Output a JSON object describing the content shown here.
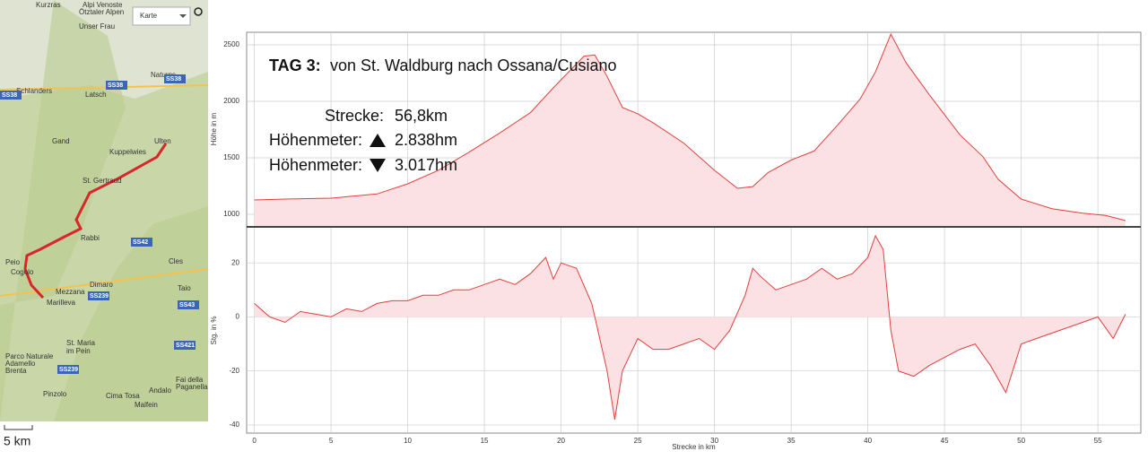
{
  "map": {
    "labels": [
      "Kurzras",
      "Alpi Venoste",
      "Ötztaler Alpen",
      "Unser Frau",
      "Naturns",
      "Schlanders",
      "Latsch",
      "Gand",
      "Ulten",
      "Kuppelwies",
      "St. Gertraud",
      "Rabbi",
      "Peio",
      "Cles",
      "Cogolo",
      "Dimaro",
      "Mezzana",
      "Taio",
      "Marilleva",
      "St. Maria",
      "im Pein",
      "Parco Naturale",
      "Adamello",
      "Brenta",
      "Fai della",
      "Paganella",
      "Pinzolo",
      "Cima Tosa",
      "Andalo",
      "Malfein"
    ],
    "roads": [
      "SS38",
      "SS38",
      "SS38",
      "SS42",
      "SS239",
      "SS43",
      "SS421",
      "SS239"
    ],
    "map_type": "Karte",
    "scale": "5 km"
  },
  "info": {
    "day": "TAG 3:",
    "route": "von St. Waldburg nach Ossana/Cusiano",
    "distance_label": "Strecke:",
    "distance": "56,8km",
    "ascent_label": "Höhenmeter:",
    "ascent": "2.838hm",
    "descent_label": "Höhenmeter:",
    "descent": "3.017hm"
  },
  "chart_data": [
    {
      "type": "area",
      "y_label": "Höhe in m",
      "color": "#e0403f",
      "fill": "#fbe1e3",
      "grid": true,
      "x": [
        0,
        2,
        5,
        8,
        10,
        12,
        14,
        16,
        18,
        19.5,
        20.5,
        21.5,
        22.2,
        23,
        24,
        25,
        26,
        28,
        30,
        31.5,
        32.5,
        33.5,
        35,
        36.5,
        38,
        39.5,
        40.5,
        41.5,
        42.5,
        44,
        46,
        47.5,
        48.5,
        50,
        52,
        54,
        55.5,
        56.8
      ],
      "values": [
        1127,
        1135,
        1143,
        1180,
        1270,
        1390,
        1550,
        1720,
        1900,
        2120,
        2260,
        2400,
        2410,
        2220,
        1945,
        1890,
        1810,
        1630,
        1390,
        1230,
        1245,
        1370,
        1480,
        1560,
        1785,
        2020,
        2260,
        2595,
        2340,
        2060,
        1705,
        1510,
        1310,
        1135,
        1050,
        1010,
        990,
        945
      ],
      "xlim": [
        -0.5,
        57.8
      ],
      "ylim": [
        897,
        2611
      ],
      "xticks": [
        0,
        5,
        10,
        15,
        20,
        25,
        30,
        35,
        40,
        45,
        50,
        55
      ],
      "yticks": [
        1000,
        1500,
        2000,
        2500
      ]
    },
    {
      "type": "area",
      "y_label": "Stg. in %",
      "x_label": "Strecke in km",
      "color": "#e0403f",
      "fill": "#fbe1e3",
      "grid": true,
      "x": [
        0,
        1,
        2,
        3,
        4,
        5,
        6,
        7,
        8,
        9,
        10,
        11,
        12,
        13,
        14,
        15,
        16,
        17,
        18,
        19,
        19.5,
        20,
        21,
        22,
        23,
        23.5,
        24,
        25,
        26,
        27,
        28,
        29,
        30,
        31,
        32,
        32.5,
        33,
        34,
        35,
        36,
        37,
        38,
        39,
        40,
        40.5,
        41,
        41.5,
        42,
        43,
        44,
        45,
        46,
        47,
        48,
        49,
        50,
        51,
        52,
        53,
        54,
        55,
        56,
        56.8
      ],
      "values": [
        5,
        0,
        -2,
        2,
        1,
        0,
        3,
        2,
        5,
        6,
        6,
        8,
        8,
        10,
        10,
        12,
        14,
        12,
        16,
        22,
        14,
        20,
        18,
        5,
        -20,
        -38,
        -20,
        -8,
        -12,
        -12,
        -10,
        -8,
        -12,
        -5,
        8,
        18,
        15,
        10,
        12,
        14,
        18,
        14,
        16,
        22,
        30,
        25,
        -5,
        -20,
        -22,
        -18,
        -15,
        -12,
        -10,
        -18,
        -28,
        -10,
        -8,
        -6,
        -4,
        -2,
        0,
        -8,
        1
      ],
      "xlim": [
        -0.5,
        57.8
      ],
      "ylim": [
        -43,
        33
      ],
      "xticks": [
        0,
        5,
        10,
        15,
        20,
        25,
        30,
        35,
        40,
        45,
        50,
        55
      ],
      "yticks": [
        -40,
        -20,
        0,
        20
      ]
    }
  ]
}
